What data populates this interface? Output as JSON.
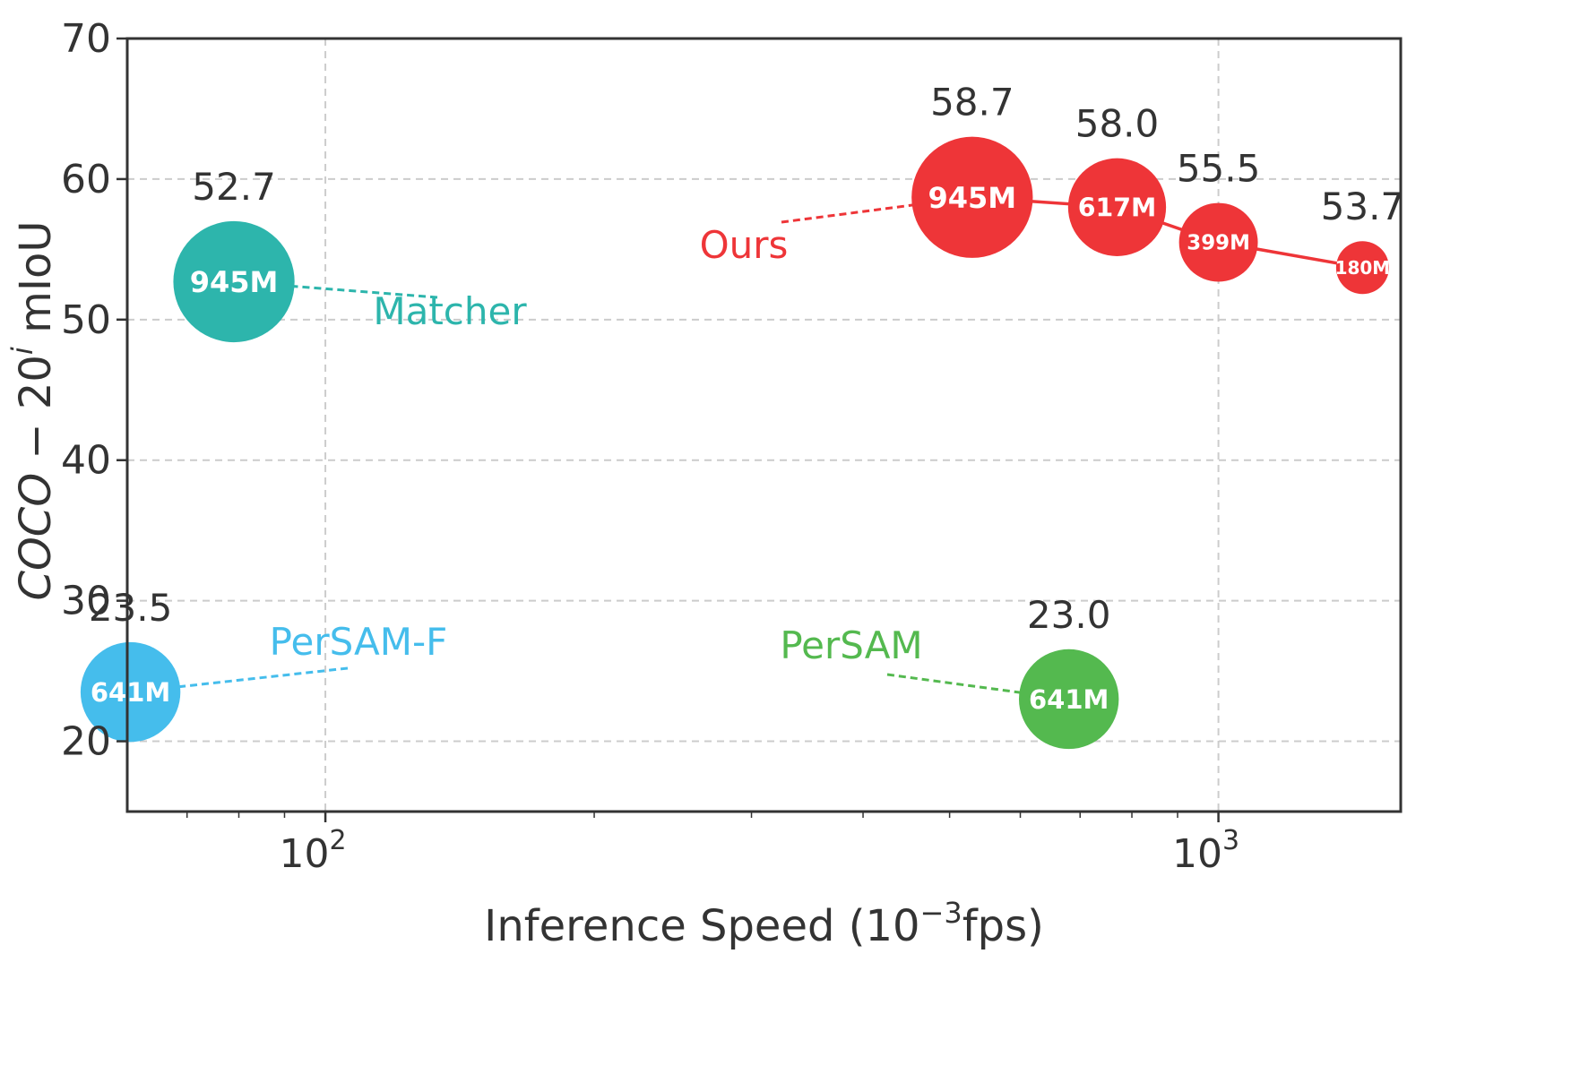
{
  "chart_data": {
    "type": "scatter",
    "xscale": "log",
    "xlabel_parts": [
      "Inference Speed (10",
      "−3",
      "fps)"
    ],
    "ylabel_parts": [
      "COCO",
      " − 20",
      "i",
      " mIoU"
    ],
    "xticks": [
      {
        "value": 100,
        "base": "10",
        "exp": "2"
      },
      {
        "value": 1000,
        "base": "10",
        "exp": "3"
      }
    ],
    "yticks": [
      20,
      30,
      40,
      50,
      60,
      70
    ],
    "xlim": [
      60,
      1600
    ],
    "ylim": [
      15,
      70
    ],
    "grid": true,
    "series": [
      {
        "name": "Ours",
        "color": "#ee3538",
        "connect": true,
        "points": [
          {
            "x": 530,
            "y": 58.7,
            "value_label": "58.7",
            "size_label": "945M",
            "params_m": 945
          },
          {
            "x": 770,
            "y": 58.0,
            "value_label": "58.0",
            "size_label": "617M",
            "params_m": 617
          },
          {
            "x": 1000,
            "y": 55.5,
            "value_label": "55.5",
            "size_label": "399M",
            "params_m": 399
          },
          {
            "x": 1450,
            "y": 53.7,
            "value_label": "53.7",
            "size_label": "180M",
            "params_m": 180
          }
        ]
      },
      {
        "name": "Matcher",
        "color": "#2db5ac",
        "connect": false,
        "points": [
          {
            "x": 79,
            "y": 52.7,
            "value_label": "52.7",
            "size_label": "945M",
            "params_m": 945
          }
        ]
      },
      {
        "name": "PerSAM-F",
        "color": "#45bdec",
        "connect": false,
        "points": [
          {
            "x": 60.5,
            "y": 23.5,
            "value_label": "23.5",
            "size_label": "641M",
            "params_m": 641
          }
        ]
      },
      {
        "name": "PerSAM",
        "color": "#54b94f",
        "connect": false,
        "points": [
          {
            "x": 680,
            "y": 23.0,
            "value_label": "23.0",
            "size_label": "641M",
            "params_m": 641
          }
        ]
      }
    ]
  }
}
